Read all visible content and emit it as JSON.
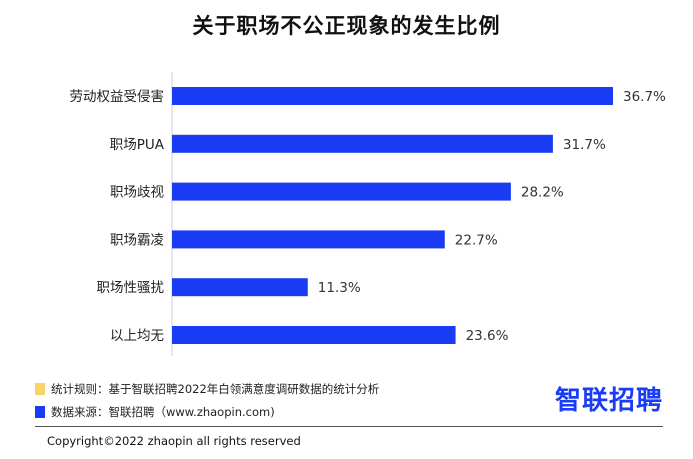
{
  "chart_data": {
    "type": "bar",
    "orientation": "horizontal",
    "title": "关于职场不公正现象的发生比例",
    "categories": [
      "劳动权益受侵害",
      "职场PUA",
      "职场歧视",
      "职场霸凌",
      "职场性骚扰",
      "以上均无"
    ],
    "values": [
      36.7,
      31.7,
      28.2,
      22.7,
      11.3,
      23.6
    ],
    "value_labels": [
      "36.7%",
      "31.7%",
      "28.2%",
      "22.7%",
      "11.3%",
      "23.6%"
    ],
    "xlim": [
      0,
      36.7
    ],
    "grid": false,
    "bar_color": "#1a3cf5"
  },
  "notes": [
    {
      "text": "统计规则：基于智联招聘2022年白领满意度调研数据的统计分析",
      "color": "#f7d36b"
    },
    {
      "text": "数据来源：智联招聘（www.zhaopin.com)",
      "color": "#1a3cf5"
    }
  ],
  "logo": "智联招聘",
  "copyright": "Copyright©2022 zhaopin all rights reserved"
}
